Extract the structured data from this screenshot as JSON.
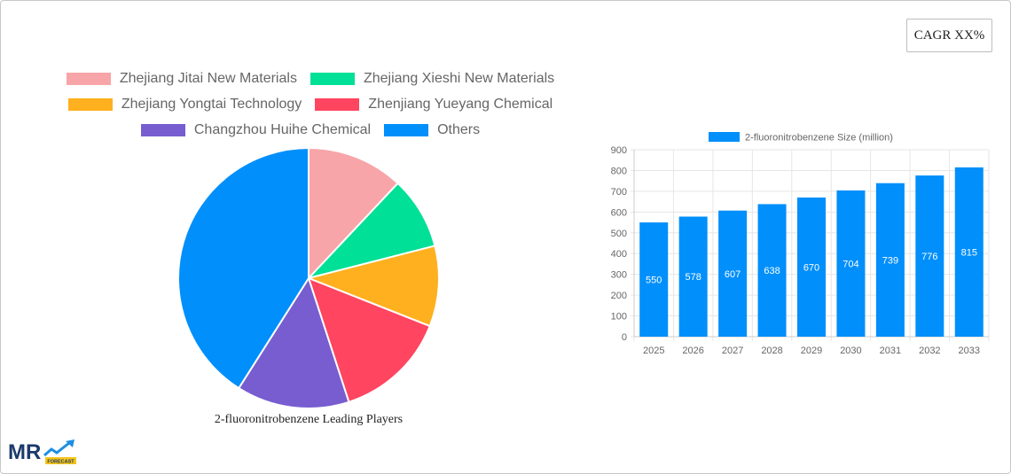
{
  "cagr_badge": {
    "label": "CAGR XX%"
  },
  "pie_section": {
    "caption": "2-fluoronitrobenzene Leading Players",
    "legend": [
      {
        "label": "Zhejiang Jitai New Materials",
        "color": "#f7a5a8"
      },
      {
        "label": "Zhejiang Xieshi New Materials",
        "color": "#00e096"
      },
      {
        "label": "Zhejiang Yongtai Technology",
        "color": "#ffb01f"
      },
      {
        "label": "Zhenjiang Yueyang Chemical",
        "color": "#ff4560"
      },
      {
        "label": "Changzhou Huihe Chemical",
        "color": "#775dd0"
      },
      {
        "label": "Others",
        "color": "#008ffb"
      }
    ]
  },
  "bar_section": {
    "legend_label": "2-fluoronitrobenzene Size (million)",
    "bar_color": "#008ffb"
  },
  "logo": {
    "text": "MR",
    "tag": "FORECAST"
  },
  "chart_data": [
    {
      "type": "pie",
      "title": "2-fluoronitrobenzene Leading Players",
      "categories": [
        "Zhejiang Jitai New Materials",
        "Zhejiang Xieshi New Materials",
        "Zhejiang Yongtai Technology",
        "Zhenjiang Yueyang Chemical",
        "Changzhou Huihe Chemical",
        "Others"
      ],
      "values": [
        12,
        9,
        10,
        14,
        14,
        41
      ],
      "colors": [
        "#f7a5a8",
        "#00e096",
        "#ffb01f",
        "#ff4560",
        "#775dd0",
        "#008ffb"
      ],
      "legend_position": "top"
    },
    {
      "type": "bar",
      "title": "",
      "categories": [
        "2025",
        "2026",
        "2027",
        "2028",
        "2029",
        "2030",
        "2031",
        "2032",
        "2033"
      ],
      "series": [
        {
          "name": "2-fluoronitrobenzene Size (million)",
          "values": [
            550,
            578,
            607,
            638,
            670,
            704,
            739,
            776,
            815
          ]
        }
      ],
      "xlabel": "",
      "ylabel": "",
      "ylim": [
        0,
        900
      ],
      "yticks": [
        0,
        100,
        200,
        300,
        400,
        500,
        600,
        700,
        800,
        900
      ],
      "grid": true,
      "data_labels": true,
      "legend_position": "top"
    }
  ]
}
